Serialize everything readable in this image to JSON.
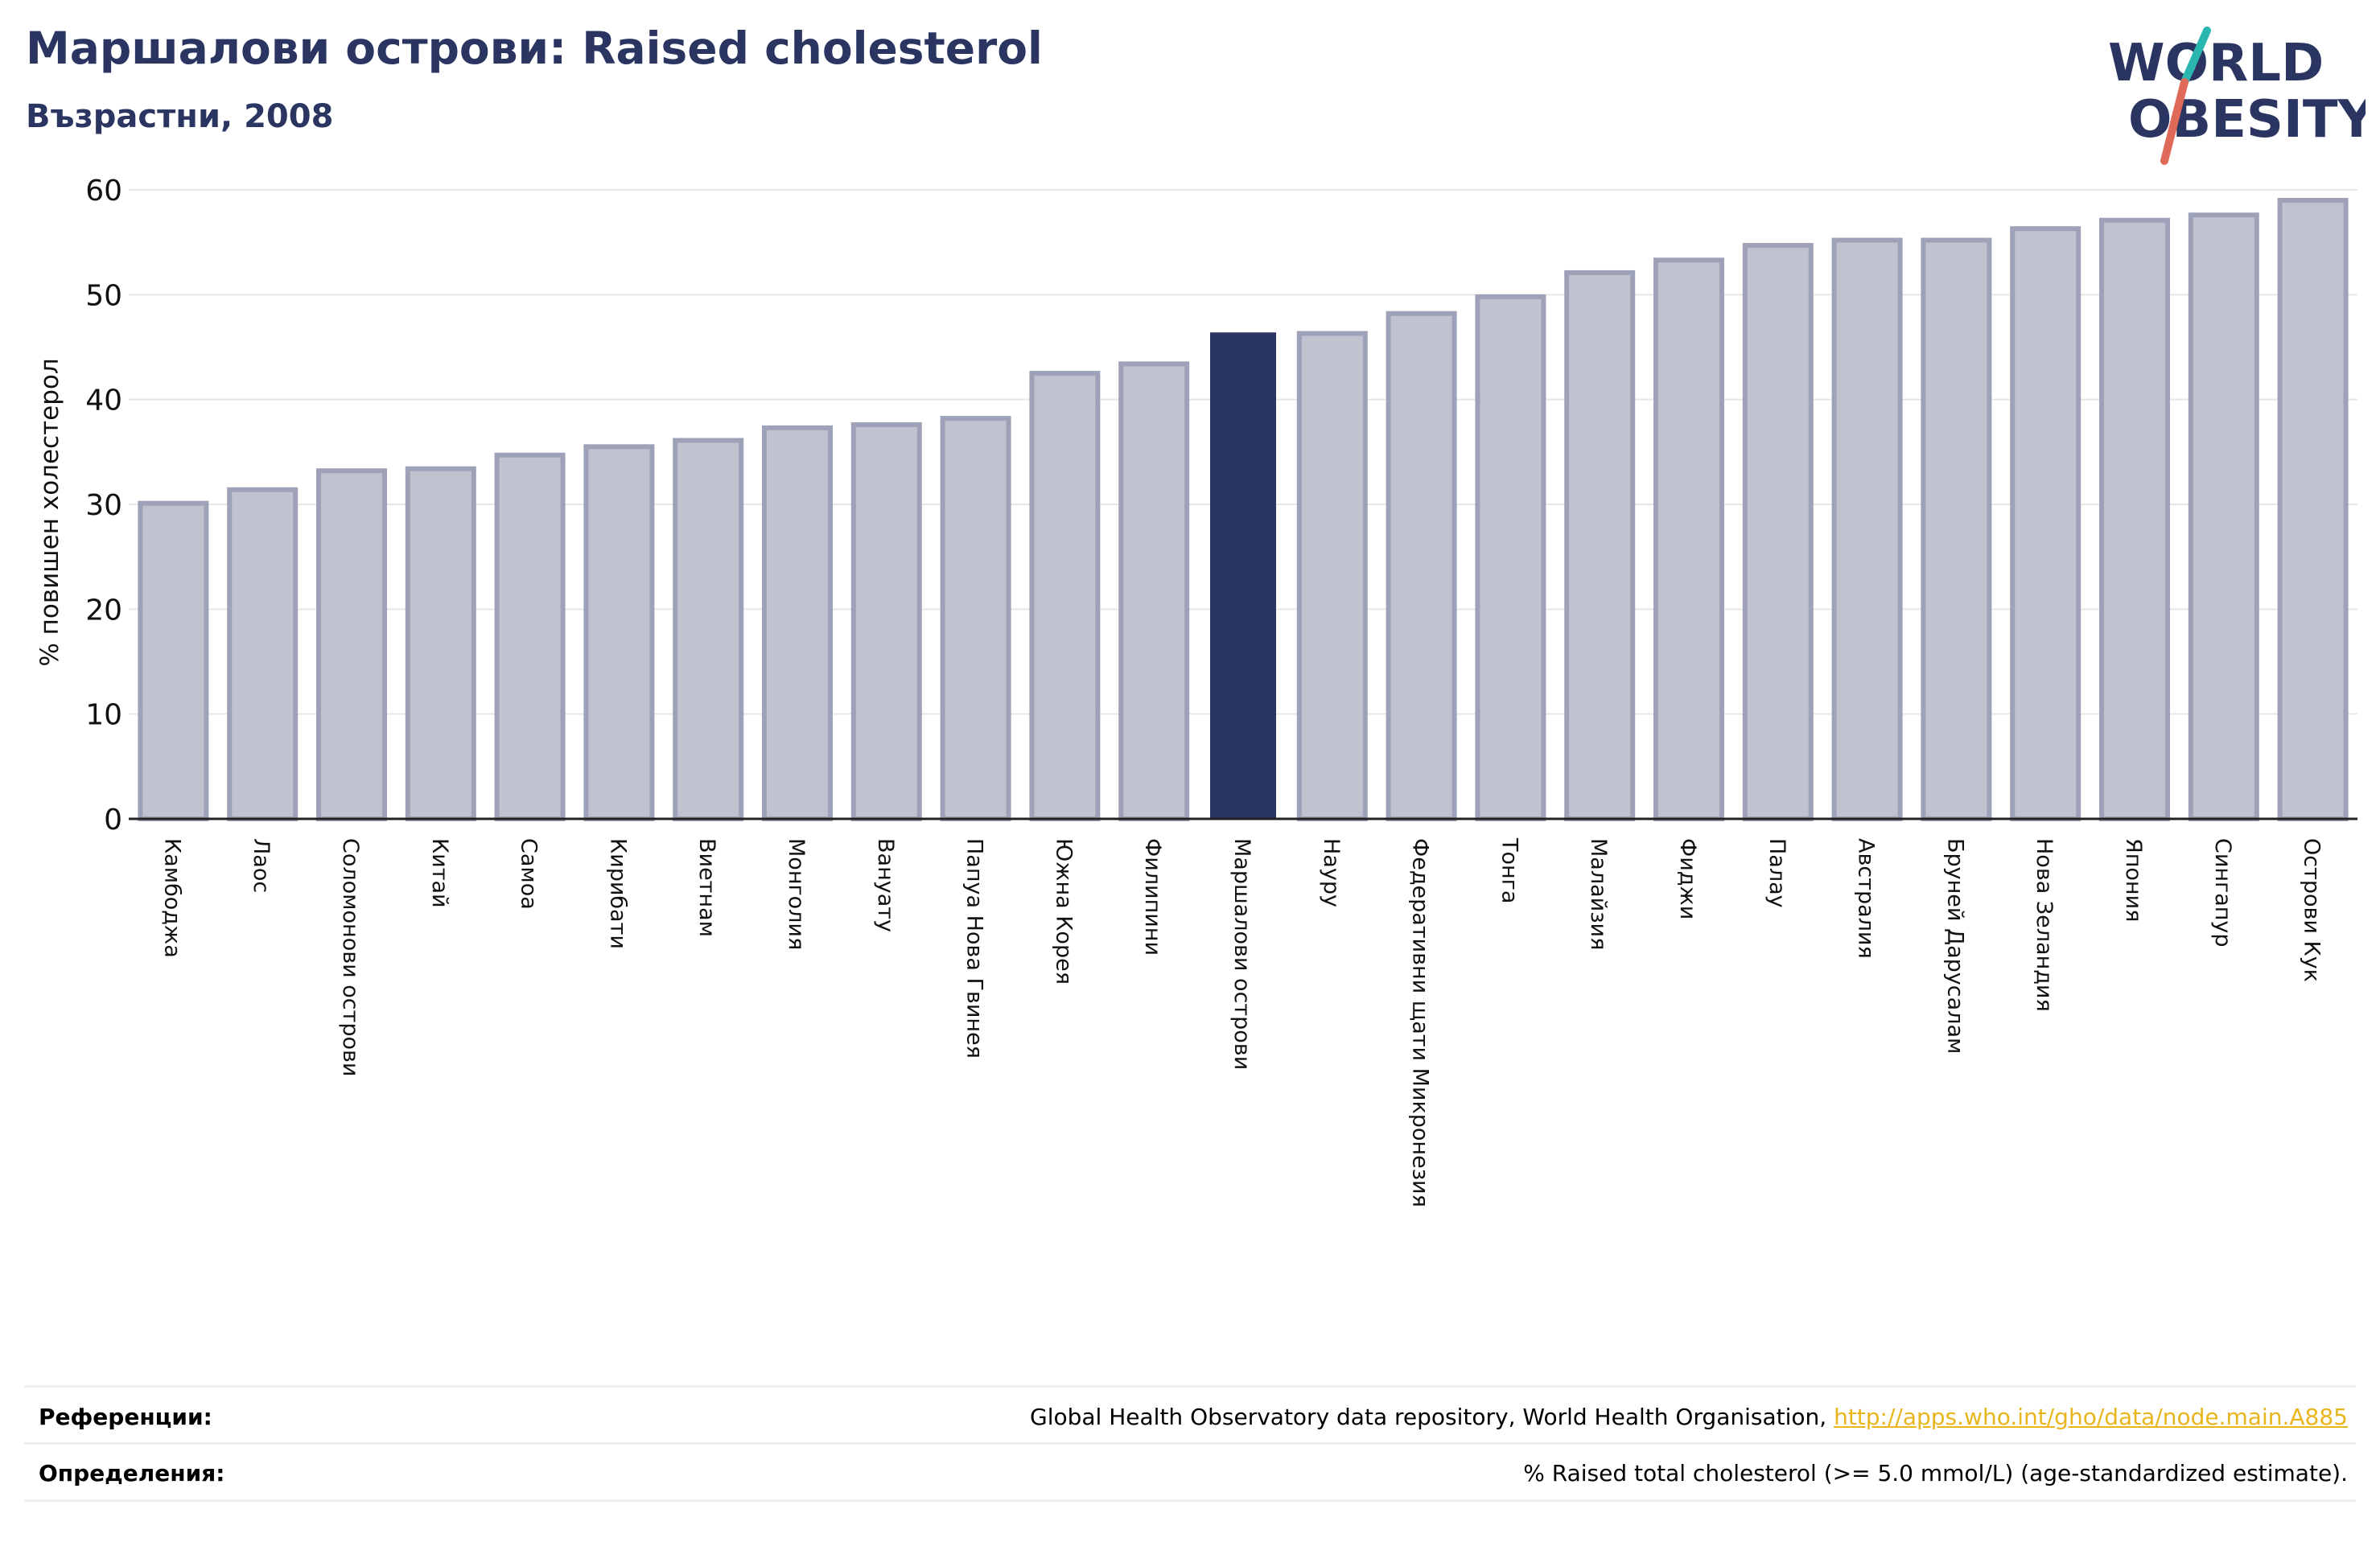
{
  "header": {
    "title": "Маршалови острови: Raised cholesterol",
    "subtitle": "Възрастни, 2008"
  },
  "logo": {
    "line1": "WORLD",
    "line2": "OBESITY"
  },
  "chart_data": {
    "type": "bar",
    "title": "Маршалови острови: Raised cholesterol",
    "subtitle": "Възрастни, 2008",
    "ylabel": "% повишен холестерол",
    "xlabel": "",
    "ylim": [
      0,
      60
    ],
    "yticks": [
      0,
      10,
      20,
      30,
      40,
      50,
      60
    ],
    "grid": true,
    "highlight": "Маршалови острови",
    "categories": [
      "Камбоджа",
      "Лаос",
      "Соломонови острови",
      "Китай",
      "Самоа",
      "Кирибати",
      "Виетнам",
      "Монголия",
      "Вануату",
      "Папуа Нова Гвинея",
      "Южна Корея",
      "Филипини",
      "Маршалови острови",
      "Науру",
      "Федеративни щати Микронезия",
      "Тонга",
      "Малайзия",
      "Фиджи",
      "Палау",
      "Австралия",
      "Бруней Дарусалам",
      "Нова Зеландия",
      "Япония",
      "Сингапур",
      "Острови Кук"
    ],
    "values": [
      30.1,
      31.4,
      33.2,
      33.4,
      34.7,
      35.5,
      36.1,
      37.3,
      37.6,
      38.2,
      42.5,
      43.4,
      46.4,
      46.3,
      48.2,
      49.8,
      52.1,
      53.3,
      54.7,
      55.2,
      55.2,
      56.3,
      57.1,
      57.6,
      59.0
    ],
    "colors": {
      "bar_fill": "#c0c2d0",
      "bar_stroke": "#9ea2b8",
      "highlight_fill": "#2b3562"
    }
  },
  "footer": {
    "references_label": "Референции:",
    "references_text": "Global Health Observatory data repository, World Health Organisation, ",
    "references_link": "http://apps.who.int/gho/data/node.main.A885",
    "definitions_label": "Определения:",
    "definitions_text": "% Raised total cholesterol (>= 5.0 mmol/L) (age-standardized estimate)."
  }
}
